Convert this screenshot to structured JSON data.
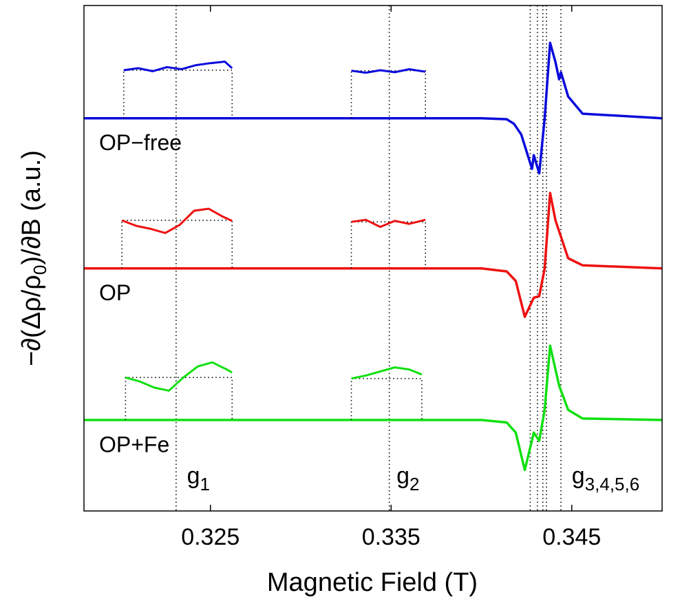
{
  "chart_data": {
    "type": "line",
    "xlabel": "Magnetic Field (T)",
    "ylabel": [
      "−∂(Δρ/ρ",
      "0",
      ")/∂B (a.u.)"
    ],
    "xlim": [
      0.318,
      0.35
    ],
    "ylim": [
      0,
      100
    ],
    "xticks": [
      0.325,
      0.335,
      0.345
    ],
    "vlines": [
      0.3231,
      0.3349,
      0.3427,
      0.3431,
      0.3434,
      0.3436,
      0.3444
    ],
    "annotations": [
      {
        "text": "g",
        "subscript": "1",
        "x": 0.3237,
        "y": 6.7
      },
      {
        "text": "g",
        "subscript": "2",
        "x": 0.3353,
        "y": 6.7
      },
      {
        "text": "g",
        "subscript": "3,4,5,6",
        "x": 0.345,
        "y": 6.7
      }
    ],
    "series": [
      {
        "name": "OP−free",
        "color": "#0a0adc",
        "x": [
          0.318,
          0.33,
          0.34,
          0.3414,
          0.3418,
          0.3422,
          0.3428,
          0.3429,
          0.3432,
          0.3435,
          0.3438,
          0.3441,
          0.3443,
          0.3444,
          0.3448,
          0.3456,
          0.35
        ],
        "values": [
          77.7,
          77.7,
          77.7,
          77.5,
          76.6,
          74.5,
          67.7,
          70.4,
          66.8,
          77.7,
          92.6,
          88.8,
          85.4,
          86.8,
          82.0,
          78.6,
          77.7
        ]
      },
      {
        "name": "OP",
        "color": "#ee1111",
        "x": [
          0.318,
          0.33,
          0.34,
          0.3414,
          0.3419,
          0.3424,
          0.3429,
          0.3432,
          0.3435,
          0.3438,
          0.3441,
          0.3448,
          0.3456,
          0.35
        ],
        "values": [
          48.0,
          48.0,
          48.0,
          47.4,
          45.5,
          38.4,
          42.2,
          42.5,
          48.0,
          62.9,
          57.5,
          50.0,
          48.6,
          48.0
        ]
      },
      {
        "name": "OP+Fe",
        "color": "#11e011",
        "x": [
          0.318,
          0.33,
          0.34,
          0.3414,
          0.3419,
          0.3424,
          0.3429,
          0.3432,
          0.3435,
          0.3438,
          0.3443,
          0.3448,
          0.3456,
          0.35
        ],
        "values": [
          18.0,
          18.0,
          18.0,
          17.5,
          15.5,
          8.1,
          15.5,
          13.9,
          20.0,
          32.7,
          24.8,
          20.0,
          18.3,
          18.0
        ]
      }
    ],
    "insets": [
      {
        "color": "#0a0adc",
        "x": [
          0.3202,
          0.321,
          0.3218,
          0.3226,
          0.3234,
          0.3242,
          0.325,
          0.3258,
          0.3262
        ],
        "values": [
          87.2,
          87.6,
          87.0,
          87.8,
          87.4,
          88.2,
          88.6,
          88.9,
          87.6
        ]
      },
      {
        "color": "#0a0adc",
        "x": [
          0.3328,
          0.3336,
          0.3344,
          0.3352,
          0.336,
          0.3369
        ],
        "values": [
          87.1,
          86.7,
          87.2,
          86.8,
          87.4,
          86.9
        ]
      },
      {
        "color": "#ee1111",
        "x": [
          0.3201,
          0.3209,
          0.3217,
          0.3225,
          0.3233,
          0.3241,
          0.3249,
          0.3257,
          0.3262
        ],
        "values": [
          57.5,
          56.4,
          55.8,
          55.0,
          56.6,
          59.4,
          59.8,
          58.2,
          57.4
        ]
      },
      {
        "color": "#ee1111",
        "x": [
          0.3328,
          0.3336,
          0.3344,
          0.3352,
          0.336,
          0.3369
        ],
        "values": [
          57.2,
          57.6,
          56.2,
          57.4,
          56.8,
          57.6
        ]
      },
      {
        "color": "#11e011",
        "x": [
          0.3203,
          0.3211,
          0.3219,
          0.3227,
          0.3235,
          0.3243,
          0.3251,
          0.3259,
          0.3262
        ],
        "values": [
          26.4,
          25.6,
          24.4,
          23.8,
          26.4,
          28.6,
          29.4,
          28.0,
          27.4
        ]
      },
      {
        "color": "#11e011",
        "x": [
          0.3328,
          0.3336,
          0.3344,
          0.3352,
          0.336,
          0.3367
        ],
        "values": [
          26.2,
          26.8,
          27.6,
          28.4,
          28.0,
          27.0
        ]
      }
    ]
  }
}
